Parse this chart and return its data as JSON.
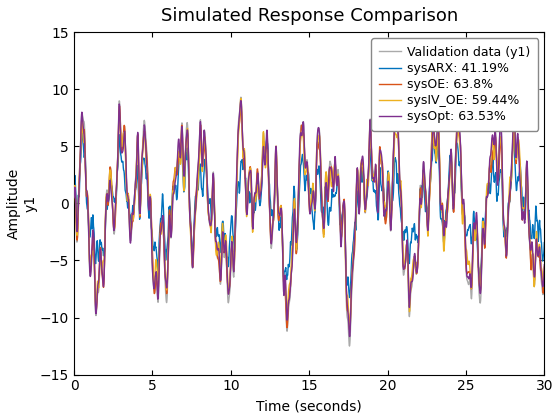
{
  "title": "Simulated Response Comparison",
  "xlabel": "Time (seconds)",
  "ylabel_top": "Amplitude",
  "ylabel_bottom": "y1",
  "xlim": [
    0,
    30
  ],
  "ylim": [
    -15,
    15
  ],
  "xticks": [
    0,
    5,
    10,
    15,
    20,
    25,
    30
  ],
  "yticks": [
    -15,
    -10,
    -5,
    0,
    5,
    10,
    15
  ],
  "legend_labels": [
    "Validation data (y1)",
    "sysARX: 41.19%",
    "sysOE: 63.8%",
    "sysIV_OE: 59.44%",
    "sysOpt: 63.53%"
  ],
  "colors": [
    "#aaaaaa",
    "#0072bd",
    "#d95319",
    "#edb120",
    "#7e2f8e"
  ],
  "linewidths": [
    1.0,
    1.0,
    1.0,
    1.0,
    1.0
  ],
  "background_color": "#ffffff",
  "title_fontsize": 13,
  "label_fontsize": 10,
  "tick_fontsize": 10,
  "legend_fontsize": 9
}
